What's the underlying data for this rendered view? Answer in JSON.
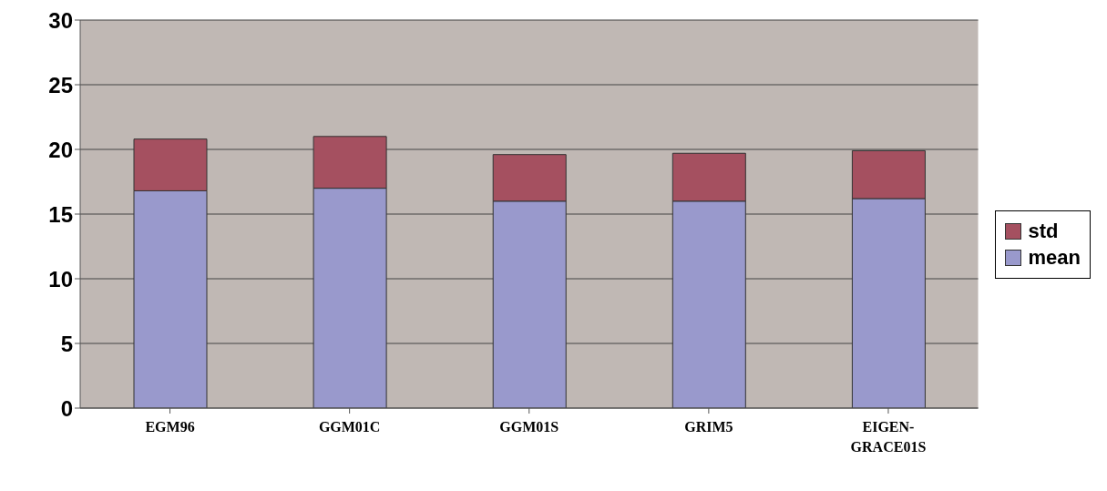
{
  "chart_data": {
    "type": "bar",
    "stacked": true,
    "categories": [
      "EGM96",
      "GGM01C",
      "GGM01S",
      "GRIM5",
      "EIGEN-GRACE01S"
    ],
    "series": [
      {
        "name": "mean",
        "color": "#9999cc",
        "values": [
          16.8,
          17.0,
          16.0,
          16.0,
          16.2
        ]
      },
      {
        "name": "std",
        "color": "#a55060",
        "values": [
          4.0,
          4.0,
          3.6,
          3.7,
          3.7
        ]
      }
    ],
    "ylim": [
      0,
      30
    ],
    "yticks": [
      0,
      5,
      10,
      15,
      20,
      25,
      30
    ],
    "grid": "y",
    "legend": "right"
  }
}
